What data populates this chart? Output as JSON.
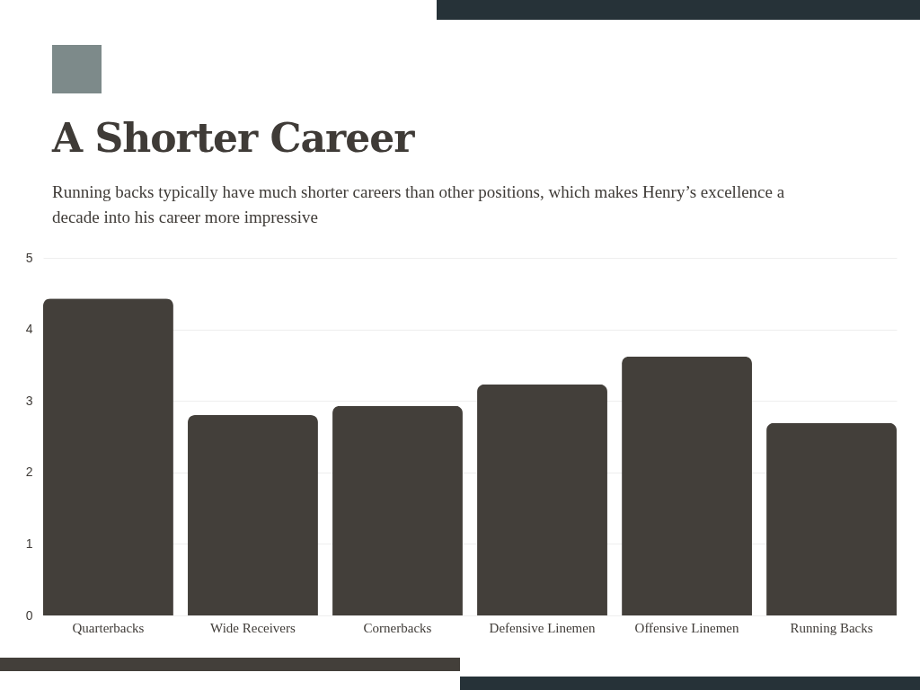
{
  "chart_data": {
    "type": "bar",
    "title": "A Shorter Career",
    "subtitle": "Running backs typically have much shorter careers than other positions, which makes Henry’s excellence a decade into his career more impressive",
    "categories": [
      "Quarterbacks",
      "Wide Receivers",
      "Cornerbacks",
      "Defensive Linemen",
      "Offensive Linemen",
      "Running Backs"
    ],
    "values": [
      4.43,
      2.8,
      2.93,
      3.23,
      3.62,
      2.69
    ],
    "color": "#433f3a",
    "ylim": [
      0,
      5
    ],
    "yticks": [
      0,
      1,
      2,
      3,
      4,
      5
    ],
    "grid": "y"
  }
}
